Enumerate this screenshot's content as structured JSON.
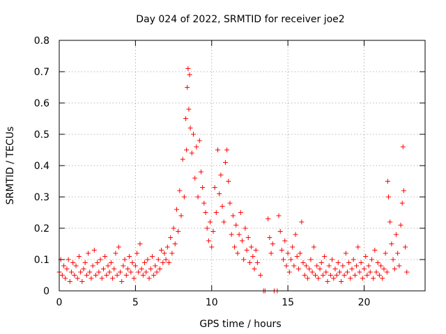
{
  "chart_data": {
    "type": "scatter",
    "title": "Day 024 of 2022, SRMTID for receiver joe2",
    "xlabel": "GPS time / hours",
    "ylabel": "SRMTID / TECUs",
    "xlim": [
      0,
      24
    ],
    "ylim": [
      0,
      0.8
    ],
    "x_ticks": [
      0,
      5,
      10,
      15,
      20
    ],
    "x_tick_labels": [
      "0",
      "5",
      "10",
      "15",
      "20"
    ],
    "y_ticks": [
      0,
      0.1,
      0.2,
      0.3,
      0.4,
      0.5,
      0.6,
      0.7,
      0.8
    ],
    "y_tick_labels": [
      "0",
      "0.1",
      "0.2",
      "0.3",
      "0.4",
      "0.5",
      "0.6",
      "0.7",
      "0.8"
    ],
    "grid": true,
    "marker": "plus",
    "color": "#ff0000",
    "series": [
      {
        "name": "SRMTID",
        "points": [
          [
            0.0,
            0.06
          ],
          [
            0.1,
            0.1
          ],
          [
            0.2,
            0.05
          ],
          [
            0.3,
            0.08
          ],
          [
            0.4,
            0.04
          ],
          [
            0.5,
            0.07
          ],
          [
            0.6,
            0.1
          ],
          [
            0.7,
            0.03
          ],
          [
            0.8,
            0.06
          ],
          [
            0.9,
            0.09
          ],
          [
            1.0,
            0.05
          ],
          [
            1.1,
            0.08
          ],
          [
            1.2,
            0.04
          ],
          [
            1.3,
            0.11
          ],
          [
            1.4,
            0.06
          ],
          [
            1.5,
            0.03
          ],
          [
            1.6,
            0.07
          ],
          [
            1.7,
            0.09
          ],
          [
            1.8,
            0.05
          ],
          [
            1.9,
            0.12
          ],
          [
            2.0,
            0.06
          ],
          [
            2.1,
            0.04
          ],
          [
            2.2,
            0.08
          ],
          [
            2.3,
            0.13
          ],
          [
            2.4,
            0.05
          ],
          [
            2.5,
            0.09
          ],
          [
            2.6,
            0.06
          ],
          [
            2.7,
            0.1
          ],
          [
            2.8,
            0.04
          ],
          [
            2.9,
            0.07
          ],
          [
            3.0,
            0.11
          ],
          [
            3.1,
            0.05
          ],
          [
            3.2,
            0.08
          ],
          [
            3.3,
            0.06
          ],
          [
            3.4,
            0.09
          ],
          [
            3.5,
            0.04
          ],
          [
            3.6,
            0.07
          ],
          [
            3.7,
            0.12
          ],
          [
            3.8,
            0.05
          ],
          [
            3.9,
            0.14
          ],
          [
            4.0,
            0.06
          ],
          [
            4.1,
            0.03
          ],
          [
            4.2,
            0.08
          ],
          [
            4.3,
            0.1
          ],
          [
            4.4,
            0.05
          ],
          [
            4.5,
            0.07
          ],
          [
            4.6,
            0.11
          ],
          [
            4.7,
            0.06
          ],
          [
            4.8,
            0.09
          ],
          [
            4.9,
            0.04
          ],
          [
            5.0,
            0.08
          ],
          [
            5.1,
            0.12
          ],
          [
            5.2,
            0.06
          ],
          [
            5.3,
            0.15
          ],
          [
            5.4,
            0.07
          ],
          [
            5.5,
            0.05
          ],
          [
            5.6,
            0.09
          ],
          [
            5.7,
            0.06
          ],
          [
            5.8,
            0.1
          ],
          [
            5.9,
            0.04
          ],
          [
            6.0,
            0.07
          ],
          [
            6.1,
            0.11
          ],
          [
            6.2,
            0.05
          ],
          [
            6.3,
            0.08
          ],
          [
            6.4,
            0.06
          ],
          [
            6.5,
            0.1
          ],
          [
            6.6,
            0.07
          ],
          [
            6.7,
            0.13
          ],
          [
            6.8,
            0.09
          ],
          [
            6.9,
            0.12
          ],
          [
            7.0,
            0.1
          ],
          [
            7.1,
            0.14
          ],
          [
            7.2,
            0.09
          ],
          [
            7.3,
            0.17
          ],
          [
            7.4,
            0.12
          ],
          [
            7.5,
            0.2
          ],
          [
            7.6,
            0.15
          ],
          [
            7.7,
            0.26
          ],
          [
            7.8,
            0.19
          ],
          [
            7.9,
            0.32
          ],
          [
            8.0,
            0.24
          ],
          [
            8.1,
            0.42
          ],
          [
            8.2,
            0.3
          ],
          [
            8.3,
            0.55
          ],
          [
            8.35,
            0.45
          ],
          [
            8.4,
            0.65
          ],
          [
            8.45,
            0.71
          ],
          [
            8.5,
            0.58
          ],
          [
            8.55,
            0.69
          ],
          [
            8.6,
            0.52
          ],
          [
            8.7,
            0.44
          ],
          [
            8.8,
            0.5
          ],
          [
            8.9,
            0.36
          ],
          [
            9.0,
            0.46
          ],
          [
            9.1,
            0.3
          ],
          [
            9.2,
            0.48
          ],
          [
            9.3,
            0.38
          ],
          [
            9.4,
            0.33
          ],
          [
            9.5,
            0.28
          ],
          [
            9.6,
            0.25
          ],
          [
            9.7,
            0.2
          ],
          [
            9.8,
            0.16
          ],
          [
            9.9,
            0.22
          ],
          [
            10.0,
            0.14
          ],
          [
            10.1,
            0.19
          ],
          [
            10.2,
            0.33
          ],
          [
            10.3,
            0.25
          ],
          [
            10.4,
            0.45
          ],
          [
            10.5,
            0.31
          ],
          [
            10.6,
            0.37
          ],
          [
            10.7,
            0.27
          ],
          [
            10.8,
            0.22
          ],
          [
            10.9,
            0.41
          ],
          [
            11.0,
            0.45
          ],
          [
            11.1,
            0.35
          ],
          [
            11.2,
            0.28
          ],
          [
            11.3,
            0.18
          ],
          [
            11.4,
            0.24
          ],
          [
            11.5,
            0.14
          ],
          [
            11.6,
            0.21
          ],
          [
            11.7,
            0.12
          ],
          [
            11.8,
            0.18
          ],
          [
            11.9,
            0.25
          ],
          [
            12.0,
            0.16
          ],
          [
            12.1,
            0.1
          ],
          [
            12.2,
            0.2
          ],
          [
            12.3,
            0.13
          ],
          [
            12.4,
            0.17
          ],
          [
            12.5,
            0.09
          ],
          [
            12.6,
            0.14
          ],
          [
            12.7,
            0.11
          ],
          [
            12.8,
            0.07
          ],
          [
            12.9,
            0.13
          ],
          [
            13.0,
            0.09
          ],
          [
            13.2,
            0.05
          ],
          [
            13.4,
            0.0
          ],
          [
            13.5,
            0.0
          ],
          [
            13.7,
            0.23
          ],
          [
            13.8,
            0.17
          ],
          [
            13.9,
            0.12
          ],
          [
            14.0,
            0.15
          ],
          [
            14.1,
            0.0
          ],
          [
            14.3,
            0.0
          ],
          [
            14.4,
            0.24
          ],
          [
            14.5,
            0.19
          ],
          [
            14.6,
            0.13
          ],
          [
            14.7,
            0.1
          ],
          [
            14.8,
            0.16
          ],
          [
            14.9,
            0.08
          ],
          [
            15.0,
            0.12
          ],
          [
            15.1,
            0.06
          ],
          [
            15.2,
            0.1
          ],
          [
            15.3,
            0.14
          ],
          [
            15.4,
            0.08
          ],
          [
            15.5,
            0.18
          ],
          [
            15.6,
            0.11
          ],
          [
            15.7,
            0.07
          ],
          [
            15.8,
            0.12
          ],
          [
            15.9,
            0.22
          ],
          [
            16.0,
            0.09
          ],
          [
            16.1,
            0.05
          ],
          [
            16.2,
            0.08
          ],
          [
            16.3,
            0.04
          ],
          [
            16.4,
            0.07
          ],
          [
            16.5,
            0.1
          ],
          [
            16.6,
            0.06
          ],
          [
            16.7,
            0.14
          ],
          [
            16.8,
            0.05
          ],
          [
            16.9,
            0.08
          ],
          [
            17.0,
            0.04
          ],
          [
            17.1,
            0.07
          ],
          [
            17.2,
            0.09
          ],
          [
            17.3,
            0.05
          ],
          [
            17.4,
            0.11
          ],
          [
            17.5,
            0.06
          ],
          [
            17.6,
            0.03
          ],
          [
            17.7,
            0.08
          ],
          [
            17.8,
            0.05
          ],
          [
            17.9,
            0.1
          ],
          [
            18.0,
            0.04
          ],
          [
            18.1,
            0.07
          ],
          [
            18.2,
            0.05
          ],
          [
            18.3,
            0.09
          ],
          [
            18.4,
            0.06
          ],
          [
            18.5,
            0.03
          ],
          [
            18.6,
            0.08
          ],
          [
            18.7,
            0.05
          ],
          [
            18.8,
            0.12
          ],
          [
            18.9,
            0.06
          ],
          [
            19.0,
            0.09
          ],
          [
            19.1,
            0.04
          ],
          [
            19.2,
            0.07
          ],
          [
            19.3,
            0.1
          ],
          [
            19.4,
            0.05
          ],
          [
            19.5,
            0.08
          ],
          [
            19.6,
            0.14
          ],
          [
            19.7,
            0.06
          ],
          [
            19.8,
            0.09
          ],
          [
            19.9,
            0.04
          ],
          [
            20.0,
            0.07
          ],
          [
            20.1,
            0.11
          ],
          [
            20.2,
            0.05
          ],
          [
            20.3,
            0.08
          ],
          [
            20.4,
            0.06
          ],
          [
            20.5,
            0.1
          ],
          [
            20.6,
            0.04
          ],
          [
            20.7,
            0.13
          ],
          [
            20.8,
            0.06
          ],
          [
            20.9,
            0.09
          ],
          [
            21.0,
            0.05
          ],
          [
            21.1,
            0.08
          ],
          [
            21.2,
            0.04
          ],
          [
            21.3,
            0.07
          ],
          [
            21.4,
            0.12
          ],
          [
            21.5,
            0.06
          ],
          [
            21.55,
            0.35
          ],
          [
            21.6,
            0.3
          ],
          [
            21.7,
            0.22
          ],
          [
            21.8,
            0.15
          ],
          [
            21.9,
            0.1
          ],
          [
            22.0,
            0.07
          ],
          [
            22.1,
            0.18
          ],
          [
            22.2,
            0.12
          ],
          [
            22.3,
            0.08
          ],
          [
            22.4,
            0.21
          ],
          [
            22.5,
            0.28
          ],
          [
            22.55,
            0.46
          ],
          [
            22.6,
            0.32
          ],
          [
            22.7,
            0.14
          ],
          [
            22.8,
            0.06
          ]
        ]
      }
    ]
  }
}
